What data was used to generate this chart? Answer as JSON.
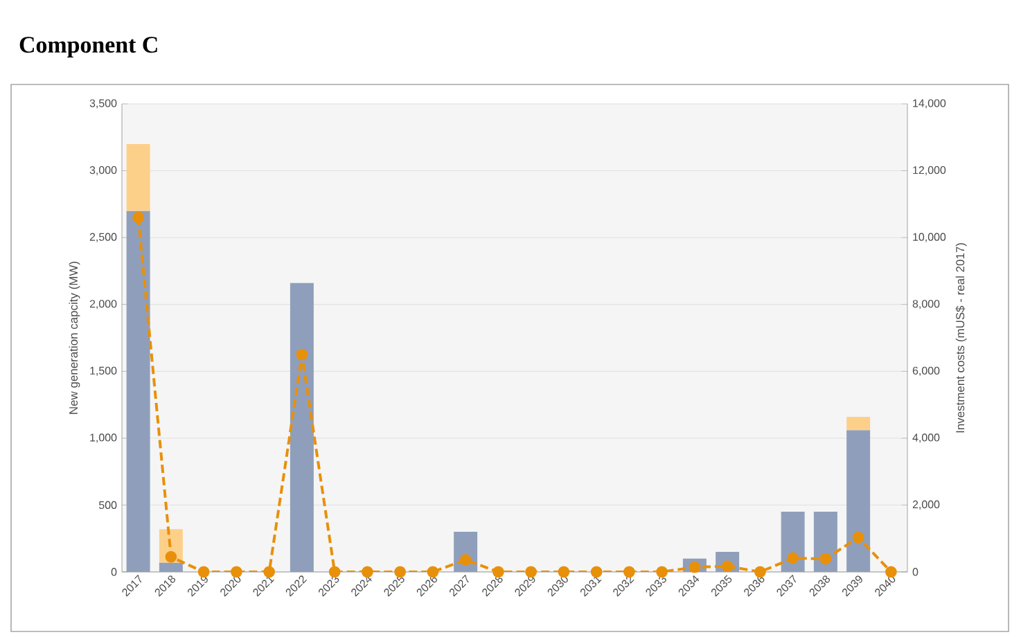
{
  "chart_data": {
    "type": "bar",
    "title": "Component C",
    "ylabel": "New generation capcity (MW)",
    "y2label": "Investment costs (mUS$ - real 2017)",
    "categories": [
      "2017",
      "2018",
      "2019",
      "2020",
      "2021",
      "2022",
      "2023",
      "2024",
      "2025",
      "2026",
      "2027",
      "2028",
      "2029",
      "2030",
      "2031",
      "2032",
      "2033",
      "2034",
      "2035",
      "2036",
      "2037",
      "2038",
      "2039",
      "2040"
    ],
    "stacked": true,
    "grid": "y",
    "legend": false,
    "ylim": [
      0,
      3500
    ],
    "yticks": [
      0,
      {
        "value": 500,
        "label": "500"
      },
      {
        "value": 1000,
        "label": "1,000"
      },
      {
        "value": 1500,
        "label": "1,500"
      },
      {
        "value": 2000,
        "label": "2,000"
      },
      {
        "value": 2500,
        "label": "2,500"
      },
      {
        "value": 3000,
        "label": "3,000"
      },
      {
        "value": 3500,
        "label": "3,500"
      }
    ],
    "y2lim": [
      0,
      14000
    ],
    "y2ticks": [
      0,
      {
        "value": 2000,
        "label": "2,000"
      },
      {
        "value": 4000,
        "label": "4,000"
      },
      {
        "value": 6000,
        "label": "6,000"
      },
      {
        "value": 8000,
        "label": "8,000"
      },
      {
        "value": 10000,
        "label": "10,000"
      },
      {
        "value": 12000,
        "label": "12,000"
      },
      {
        "value": 14000,
        "label": "14,000"
      }
    ],
    "series": [
      {
        "type": "bar",
        "color": "#8f9fbb",
        "values": [
          2700,
          70,
          0,
          0,
          0,
          2160,
          0,
          0,
          0,
          0,
          300,
          0,
          0,
          0,
          0,
          0,
          0,
          100,
          150,
          0,
          450,
          450,
          1060,
          0
        ]
      },
      {
        "type": "bar",
        "color": "#fdd08a",
        "values": [
          500,
          250,
          0,
          0,
          0,
          0,
          0,
          0,
          0,
          0,
          0,
          0,
          0,
          0,
          0,
          0,
          0,
          0,
          0,
          0,
          0,
          0,
          100,
          0
        ]
      },
      {
        "type": "line",
        "axis": "y2",
        "color": "#e8900a",
        "marker": "circle",
        "line_style": "dashed",
        "values": [
          10600,
          450,
          0,
          0,
          0,
          6500,
          0,
          0,
          0,
          0,
          360,
          0,
          0,
          0,
          0,
          0,
          0,
          140,
          170,
          0,
          410,
          390,
          1030,
          0
        ]
      }
    ]
  }
}
